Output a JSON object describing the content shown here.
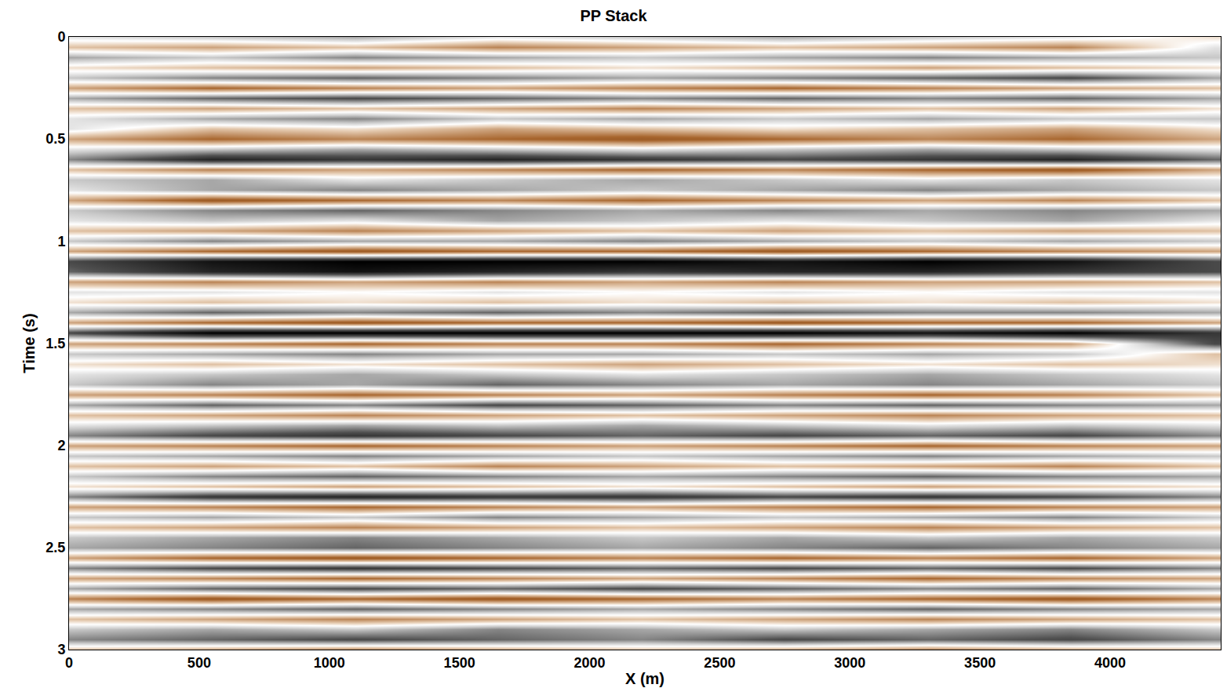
{
  "chart_data": {
    "type": "heatmap",
    "title": "PP Stack",
    "x_label": "X (m)",
    "y_label": "Time (s)",
    "xlim": [
      0,
      4425
    ],
    "ylim": [
      3,
      0
    ],
    "xticks": [
      0,
      500,
      1000,
      1500,
      2000,
      2500,
      3000,
      3500,
      4000
    ],
    "yticks": [
      0,
      0.5,
      1,
      1.5,
      2,
      2.5,
      3
    ],
    "zlim": [
      -1,
      1
    ],
    "x": [
      0,
      550,
      1100,
      1650,
      2200,
      2750,
      3300,
      3850,
      4400
    ],
    "y": [
      0,
      0.05,
      0.1,
      0.15,
      0.2,
      0.25,
      0.3,
      0.35,
      0.4,
      0.45,
      0.5,
      0.55,
      0.6,
      0.65,
      0.7,
      0.75,
      0.8,
      0.85,
      0.9,
      0.95,
      1,
      1.05,
      1.1,
      1.15,
      1.2,
      1.25,
      1.3,
      1.35,
      1.4,
      1.45,
      1.5,
      1.55,
      1.6,
      1.65,
      1.7,
      1.75,
      1.8,
      1.85,
      1.9,
      1.95,
      2,
      2.05,
      2.1,
      2.15,
      2.2,
      2.25,
      2.3,
      2.35,
      2.4,
      2.45,
      2.5,
      2.55,
      2.6,
      2.65,
      2.7,
      2.75,
      2.8,
      2.85,
      2.9,
      2.95,
      3
    ],
    "z": [
      [
        0.1,
        0.2,
        0.3,
        0.1,
        0.2,
        0.3,
        0.2,
        0.1,
        -0.1
      ],
      [
        -0.2,
        -0.3,
        -0.2,
        -0.4,
        -0.3,
        -0.2,
        -0.3,
        -0.4,
        0.1
      ],
      [
        0.3,
        0.2,
        0.4,
        0.3,
        0.2,
        0.3,
        0.4,
        0.3,
        0.2
      ],
      [
        -0.1,
        -0.2,
        -0.3,
        -0.2,
        -0.1,
        -0.2,
        -0.3,
        -0.2,
        -0.1
      ],
      [
        0.2,
        0.4,
        0.5,
        0.4,
        0.3,
        0.4,
        0.5,
        0.6,
        0.3
      ],
      [
        -0.3,
        -0.5,
        -0.4,
        -0.3,
        -0.4,
        -0.5,
        -0.4,
        -0.3,
        -0.2
      ],
      [
        0.3,
        0.5,
        0.6,
        0.5,
        0.4,
        0.5,
        0.4,
        0.5,
        0.3
      ],
      [
        -0.2,
        -0.3,
        -0.2,
        -0.3,
        -0.4,
        -0.3,
        -0.2,
        -0.3,
        -0.1
      ],
      [
        0.1,
        0.3,
        0.4,
        0.2,
        0.3,
        0.2,
        0.3,
        0.2,
        0.2
      ],
      [
        0.1,
        -0.2,
        -0.1,
        -0.3,
        -0.2,
        -0.1,
        -0.2,
        -0.3,
        -0.1
      ],
      [
        -0.3,
        -0.5,
        -0.4,
        -0.5,
        -0.6,
        -0.5,
        -0.4,
        -0.5,
        -0.3
      ],
      [
        0.1,
        0.2,
        0.3,
        0.2,
        0.1,
        0.2,
        0.3,
        0.2,
        0.1
      ],
      [
        0.4,
        0.8,
        0.7,
        0.8,
        0.7,
        0.6,
        0.7,
        0.8,
        0.5
      ],
      [
        -0.2,
        -0.4,
        -0.3,
        -0.4,
        -0.5,
        -0.4,
        -0.5,
        -0.6,
        -0.3
      ],
      [
        0.2,
        0.3,
        0.1,
        0.2,
        0.3,
        0.2,
        0.1,
        0.2,
        0.1
      ],
      [
        0.1,
        0.3,
        0.4,
        0.3,
        0.2,
        0.3,
        0.4,
        0.3,
        0.2
      ],
      [
        -0.3,
        -0.6,
        -0.5,
        -0.4,
        -0.5,
        -0.4,
        -0.3,
        -0.4,
        -0.2
      ],
      [
        0.2,
        0.4,
        0.5,
        0.4,
        0.3,
        0.4,
        0.3,
        0.4,
        0.3
      ],
      [
        0.1,
        0.2,
        0.1,
        0.3,
        0.2,
        0.1,
        0.2,
        0.3,
        0.1
      ],
      [
        -0.2,
        -0.3,
        -0.4,
        -0.3,
        -0.2,
        -0.3,
        -0.2,
        -0.3,
        -0.2
      ],
      [
        0.2,
        0.4,
        0.3,
        0.3,
        0.4,
        0.3,
        0.2,
        0.3,
        0.2
      ],
      [
        -0.3,
        -0.5,
        -0.6,
        -0.5,
        -0.5,
        -0.6,
        -0.5,
        -0.4,
        -0.3
      ],
      [
        0.6,
        0.9,
        1.0,
        1.0,
        1.0,
        0.9,
        1.0,
        0.9,
        0.6
      ],
      [
        0.5,
        0.8,
        0.9,
        0.8,
        0.7,
        0.8,
        0.8,
        0.7,
        0.6
      ],
      [
        -0.3,
        -0.4,
        -0.3,
        -0.4,
        -0.3,
        -0.4,
        -0.3,
        -0.3,
        -0.2
      ],
      [
        0.1,
        0.1,
        0.0,
        0.1,
        0.0,
        0.1,
        0.0,
        0.1,
        0.1
      ],
      [
        -0.1,
        -0.2,
        -0.1,
        -0.2,
        -0.1,
        -0.2,
        -0.1,
        -0.2,
        -0.1
      ],
      [
        0.3,
        0.5,
        0.4,
        0.5,
        0.4,
        0.5,
        0.4,
        0.4,
        0.3
      ],
      [
        -0.3,
        -0.5,
        -0.6,
        -0.5,
        -0.5,
        -0.6,
        -0.5,
        -0.5,
        -0.3
      ],
      [
        0.6,
        1.0,
        1.0,
        1.0,
        1.0,
        1.0,
        0.9,
        1.0,
        0.7
      ],
      [
        -0.3,
        -0.4,
        -0.5,
        -0.4,
        -0.4,
        -0.5,
        -0.4,
        -0.3,
        0.6
      ],
      [
        0.2,
        0.3,
        0.4,
        0.3,
        0.3,
        0.2,
        0.3,
        0.2,
        -0.2
      ],
      [
        -0.1,
        -0.2,
        -0.1,
        -0.2,
        -0.3,
        -0.2,
        -0.1,
        -0.2,
        -0.1
      ],
      [
        0.1,
        0.2,
        0.3,
        0.2,
        0.1,
        0.2,
        0.3,
        0.2,
        0.1
      ],
      [
        0.2,
        0.4,
        0.3,
        0.5,
        0.4,
        0.3,
        0.4,
        0.3,
        0.2
      ],
      [
        -0.3,
        -0.4,
        -0.5,
        -0.4,
        -0.3,
        -0.4,
        -0.5,
        -0.4,
        -0.2
      ],
      [
        0.3,
        0.5,
        0.4,
        0.6,
        0.5,
        0.4,
        0.5,
        0.4,
        0.3
      ],
      [
        -0.2,
        -0.3,
        -0.4,
        -0.3,
        -0.2,
        -0.3,
        -0.4,
        -0.3,
        -0.2
      ],
      [
        0.1,
        0.2,
        0.3,
        0.2,
        0.3,
        0.2,
        0.1,
        0.2,
        0.1
      ],
      [
        0.4,
        0.6,
        0.7,
        0.6,
        0.5,
        0.6,
        0.5,
        0.6,
        0.4
      ],
      [
        -0.3,
        -0.4,
        -0.5,
        -0.4,
        -0.3,
        -0.4,
        -0.5,
        -0.4,
        -0.3
      ],
      [
        0.2,
        0.3,
        0.4,
        0.3,
        0.2,
        0.3,
        0.4,
        0.3,
        0.2
      ],
      [
        -0.2,
        -0.3,
        -0.2,
        -0.4,
        -0.3,
        -0.2,
        -0.3,
        -0.4,
        -0.2
      ],
      [
        0.2,
        0.4,
        0.5,
        0.4,
        0.3,
        0.4,
        0.5,
        0.4,
        0.3
      ],
      [
        -0.1,
        -0.2,
        -0.3,
        -0.2,
        -0.1,
        -0.2,
        -0.3,
        -0.2,
        -0.1
      ],
      [
        0.4,
        0.7,
        0.8,
        0.7,
        0.7,
        0.6,
        0.7,
        0.6,
        0.4
      ],
      [
        -0.3,
        -0.4,
        -0.5,
        -0.4,
        -0.3,
        -0.4,
        -0.5,
        -0.4,
        -0.3
      ],
      [
        0.2,
        0.3,
        0.2,
        0.4,
        0.3,
        0.2,
        0.3,
        0.4,
        0.2
      ],
      [
        -0.2,
        -0.3,
        -0.4,
        -0.3,
        -0.2,
        -0.3,
        -0.4,
        -0.3,
        -0.2
      ],
      [
        0.2,
        0.3,
        0.4,
        0.3,
        0.2,
        0.3,
        0.2,
        0.3,
        0.2
      ],
      [
        0.3,
        0.4,
        0.5,
        0.4,
        0.3,
        0.4,
        0.5,
        0.4,
        0.3
      ],
      [
        -0.3,
        -0.5,
        -0.6,
        -0.5,
        -0.4,
        -0.5,
        -0.4,
        -0.5,
        -0.3
      ],
      [
        0.4,
        0.6,
        0.7,
        0.6,
        0.5,
        0.6,
        0.5,
        0.6,
        0.4
      ],
      [
        -0.3,
        -0.4,
        -0.5,
        -0.4,
        -0.3,
        -0.4,
        -0.5,
        -0.4,
        -0.3
      ],
      [
        0.3,
        0.5,
        0.6,
        0.5,
        0.6,
        0.5,
        0.4,
        0.5,
        0.3
      ],
      [
        -0.4,
        -0.6,
        -0.5,
        -0.6,
        -0.5,
        -0.4,
        -0.5,
        -0.6,
        -0.4
      ],
      [
        0.3,
        0.4,
        0.5,
        0.4,
        0.3,
        0.4,
        0.5,
        0.4,
        0.3
      ],
      [
        -0.2,
        -0.3,
        -0.4,
        -0.3,
        -0.2,
        -0.3,
        -0.4,
        -0.3,
        -0.2
      ],
      [
        0.2,
        0.3,
        0.2,
        0.4,
        0.3,
        0.2,
        0.3,
        0.4,
        0.2
      ],
      [
        0.4,
        0.5,
        0.6,
        0.5,
        0.4,
        0.6,
        0.5,
        0.6,
        0.4
      ],
      [
        -0.2,
        -0.3,
        -0.4,
        -0.3,
        -0.2,
        -0.3,
        -0.4,
        -0.3,
        -0.2
      ]
    ]
  }
}
